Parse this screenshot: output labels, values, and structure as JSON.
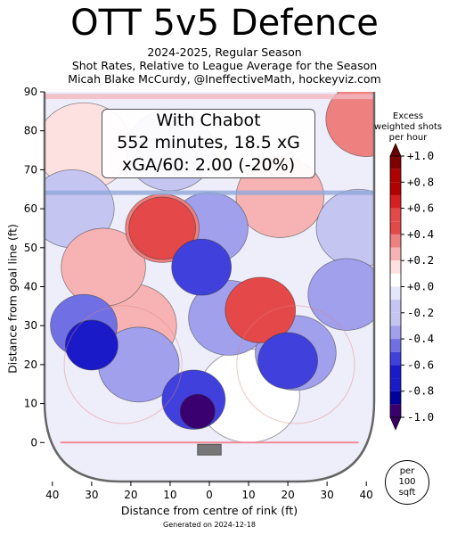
{
  "title": "OTT 5v5 Defence",
  "subtitle_lines": [
    "2024-2025, Regular Season",
    "Shot Rates, Relative to League Average for the Season",
    "Micah Blake McCurdy, @IneffectiveMath, hockeyviz.com"
  ],
  "infobox": {
    "line1": "With Chabot",
    "line2": "552 minutes, 18.5 xG",
    "line3": "xGA/60: 2.00 (-20%)"
  },
  "colorbar": {
    "title_lines": [
      "Excess",
      "weighted shots",
      "per hour"
    ],
    "ticks": [
      "+1.0",
      "+0.8",
      "+0.6",
      "+0.4",
      "+0.2",
      "+0.0",
      "-0.2",
      "-0.4",
      "-0.6",
      "-0.8",
      "-1.0"
    ],
    "tick_values": [
      1.0,
      0.8,
      0.6,
      0.4,
      0.2,
      0.0,
      -0.2,
      -0.4,
      -0.6,
      -0.8,
      -1.0
    ],
    "colors": {
      "pos": [
        "#fde0e0",
        "#f7b3b3",
        "#ee8080",
        "#e44848",
        "#d62020",
        "#b00000",
        "#800000"
      ],
      "neg": [
        "#e6e6fa",
        "#c5c5f2",
        "#a0a0ec",
        "#7070e4",
        "#4040dc",
        "#1a1ac8",
        "#00009a",
        "#3a0070"
      ],
      "neutral": "#ffffff"
    }
  },
  "per_badge": [
    "per",
    "100",
    "sqft"
  ],
  "footer": "Generated on 2024-12-18",
  "chart_data": {
    "type": "heatmap",
    "xlabel": "Distance from centre of rink (ft)",
    "ylabel": "Distance from goal line (ft)",
    "xlim": [
      -42,
      42
    ],
    "ylim": [
      -10,
      90
    ],
    "x_ticks": [
      40,
      30,
      20,
      10,
      0,
      10,
      20,
      30,
      40
    ],
    "x_tick_values": [
      -40,
      -30,
      -20,
      -10,
      0,
      10,
      20,
      30,
      40
    ],
    "y_ticks": [
      0,
      10,
      20,
      30,
      40,
      50,
      60,
      70,
      80,
      90
    ],
    "value_range": [
      -1.0,
      1.0
    ],
    "regions": [
      {
        "x": -3,
        "y": 8,
        "value": -0.95
      },
      {
        "x": -4,
        "y": 11,
        "value": -0.55
      },
      {
        "x": -30,
        "y": 25,
        "value": -0.7
      },
      {
        "x": -32,
        "y": 30,
        "value": -0.5
      },
      {
        "x": -18,
        "y": 20,
        "value": -0.3
      },
      {
        "x": 20,
        "y": 21,
        "value": -0.6
      },
      {
        "x": 22,
        "y": 23,
        "value": -0.3
      },
      {
        "x": -2,
        "y": 45,
        "value": -0.6
      },
      {
        "x": 0,
        "y": 55,
        "value": -0.35
      },
      {
        "x": 5,
        "y": 32,
        "value": -0.3
      },
      {
        "x": 35,
        "y": 38,
        "value": -0.35
      },
      {
        "x": 38,
        "y": 55,
        "value": -0.25
      },
      {
        "x": -35,
        "y": 60,
        "value": -0.25
      },
      {
        "x": -10,
        "y": 75,
        "value": -0.2
      },
      {
        "x": -12,
        "y": 55,
        "value": 0.4
      },
      {
        "x": -12,
        "y": 55,
        "value": 0.5
      },
      {
        "x": -27,
        "y": 45,
        "value": 0.25
      },
      {
        "x": -20,
        "y": 30,
        "value": 0.15
      },
      {
        "x": 13,
        "y": 34,
        "value": 0.45
      },
      {
        "x": 18,
        "y": 63,
        "value": 0.2
      },
      {
        "x": -32,
        "y": 76,
        "value": 0.1
      },
      {
        "x": 40,
        "y": 83,
        "value": 0.3
      },
      {
        "x": 10,
        "y": 12,
        "value": 0.0
      }
    ]
  }
}
